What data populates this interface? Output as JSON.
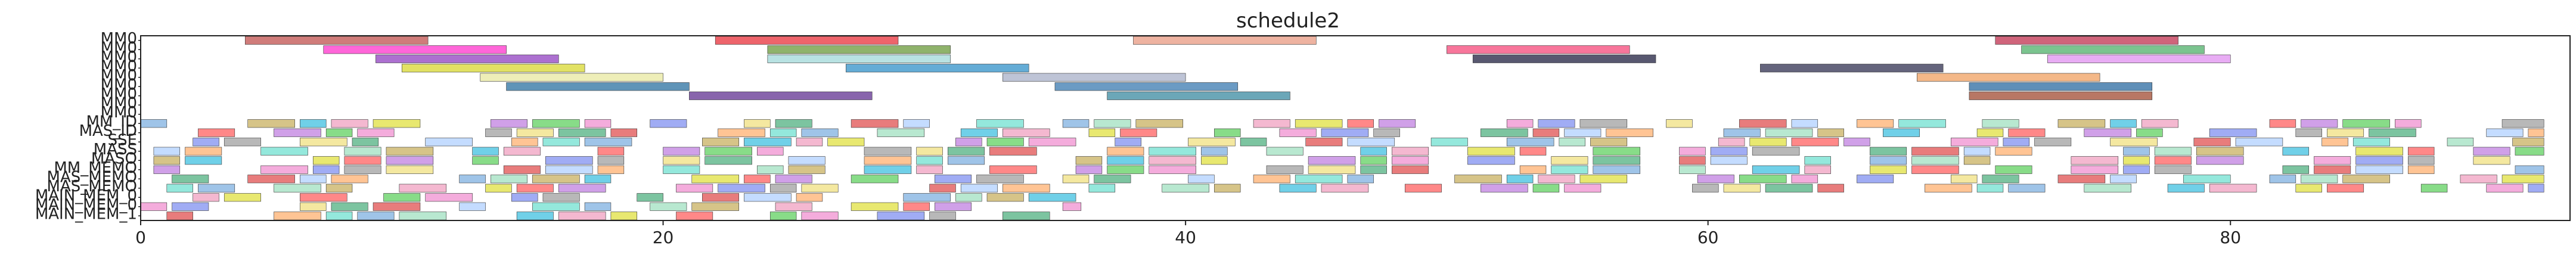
{
  "chart_data": {
    "type": "gantt",
    "title": "schedule2",
    "xlabel": "",
    "ylabel": "",
    "xlim": [
      0,
      93
    ],
    "xticks": [
      0,
      20,
      40,
      60,
      80
    ],
    "grid": false,
    "rows": [
      "MM0",
      "MM0",
      "MM0",
      "MM0",
      "MM0",
      "MM0",
      "MM0",
      "MM0",
      "MM0",
      "MM_ID",
      "MAS_ID",
      "SSE",
      "MASS",
      "MASO",
      "MM_MEMO",
      "MAS_MEMO",
      "MAS_MEMO",
      "MAIN_MEM_0",
      "MAIN_MEM_0",
      "MAIN_MEM_1"
    ],
    "tasks": [
      {
        "row": 0,
        "start": 4,
        "end": 11,
        "color": "#c0504d"
      },
      {
        "row": 0,
        "start": 22,
        "end": 29,
        "color": "#e8303a"
      },
      {
        "row": 0,
        "start": 38,
        "end": 45,
        "color": "#e89a82"
      },
      {
        "row": 0,
        "start": 71,
        "end": 78,
        "color": "#c0304f"
      },
      {
        "row": 1,
        "start": 7,
        "end": 14,
        "color": "#ff33cc"
      },
      {
        "row": 1,
        "start": 24,
        "end": 31,
        "color": "#6a9a3a"
      },
      {
        "row": 1,
        "start": 50,
        "end": 57,
        "color": "#f5487a"
      },
      {
        "row": 1,
        "start": 72,
        "end": 79,
        "color": "#4fb06a"
      },
      {
        "row": 2,
        "start": 9,
        "end": 16,
        "color": "#9040c0"
      },
      {
        "row": 2,
        "start": 24,
        "end": 31,
        "color": "#a0d8d8"
      },
      {
        "row": 2,
        "start": 51,
        "end": 58,
        "color": "#202040"
      },
      {
        "row": 2,
        "start": 73,
        "end": 80,
        "color": "#e090f0"
      },
      {
        "row": 3,
        "start": 10,
        "end": 17,
        "color": "#d8d830"
      },
      {
        "row": 3,
        "start": 27,
        "end": 34,
        "color": "#3090c8"
      },
      {
        "row": 3,
        "start": 62,
        "end": 69,
        "color": "#303050"
      },
      {
        "row": 4,
        "start": 13,
        "end": 20,
        "color": "#e8e8a0"
      },
      {
        "row": 4,
        "start": 33,
        "end": 40,
        "color": "#a8b0c8"
      },
      {
        "row": 4,
        "start": 68,
        "end": 75,
        "color": "#f0a060"
      },
      {
        "row": 5,
        "start": 14,
        "end": 21,
        "color": "#2a70a0"
      },
      {
        "row": 5,
        "start": 35,
        "end": 42,
        "color": "#3a7ab0"
      },
      {
        "row": 5,
        "start": 70,
        "end": 77,
        "color": "#2a6aa0"
      },
      {
        "row": 6,
        "start": 21,
        "end": 28,
        "color": "#603090"
      },
      {
        "row": 6,
        "start": 37,
        "end": 44,
        "color": "#3a8aa0"
      },
      {
        "row": 6,
        "start": 70,
        "end": 77,
        "color": "#a04a30"
      }
    ],
    "dense_rows": [
      9,
      10,
      11,
      12,
      13,
      14,
      15,
      16,
      17,
      18,
      19
    ],
    "dense_colors": [
      "#7fb0e0",
      "#a0e0c0",
      "#c8b060",
      "#40c0e0",
      "#f0a0c0",
      "#e0e040",
      "#ff6060",
      "#c080e0",
      "#60d060",
      "#f090d0",
      "#8090f0",
      "#a0a0a0",
      "#f0e080",
      "#50b080",
      "#e05050",
      "#b0d0ff",
      "#ffb070",
      "#70e0d0"
    ]
  }
}
